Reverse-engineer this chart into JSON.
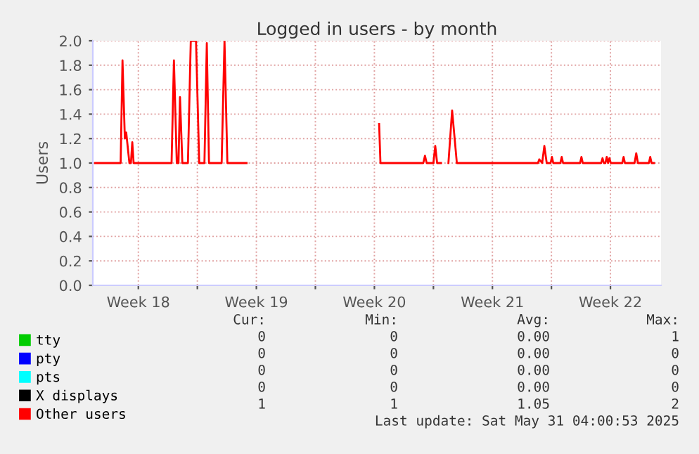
{
  "chart_data": {
    "type": "line",
    "title": "Logged in users - by month",
    "ylabel": "Users",
    "xlim": [
      "2025-04-27T19:12",
      "2025-05-31T12:00"
    ],
    "xticks": [
      {
        "value": "2025-04-30T12:00",
        "label": "Week 18"
      },
      {
        "value": "2025-05-04T00:00",
        "label": null
      },
      {
        "value": "2025-05-07T12:00",
        "label": "Week 19"
      },
      {
        "value": "2025-05-11T00:00",
        "label": null
      },
      {
        "value": "2025-05-14T12:00",
        "label": "Week 20"
      },
      {
        "value": "2025-05-18T00:00",
        "label": null
      },
      {
        "value": "2025-05-21T12:00",
        "label": "Week 21"
      },
      {
        "value": "2025-05-25T00:00",
        "label": null
      },
      {
        "value": "2025-05-28T12:00",
        "label": "Week 22"
      }
    ],
    "ylim": [
      0,
      2.0
    ],
    "yticks": [
      {
        "value": 0,
        "label": "0.0"
      },
      {
        "value": 0.2,
        "label": "0.2"
      },
      {
        "value": 0.4,
        "label": "0.4"
      },
      {
        "value": 0.6,
        "label": "0.6"
      },
      {
        "value": 0.8,
        "label": "0.8"
      },
      {
        "value": 1.0,
        "label": "1.0"
      },
      {
        "value": 1.2,
        "label": "1.2"
      },
      {
        "value": 1.4,
        "label": "1.4"
      },
      {
        "value": 1.6,
        "label": "1.6"
      },
      {
        "value": 1.8,
        "label": "1.8"
      },
      {
        "value": 2.0,
        "label": "2.0"
      }
    ],
    "grid": true,
    "legend": "bottom",
    "marker": "none",
    "line_style": "solid",
    "series": [
      {
        "name": "tty",
        "color": "#00cc00"
      },
      {
        "name": "pty",
        "color": "#0000ff"
      },
      {
        "name": "pts",
        "color": "#00ffff"
      },
      {
        "name": "X displays",
        "color": "#000000"
      },
      {
        "name": "Other users",
        "color": "#ff0000",
        "x": [
          "2025-04-27T22:34",
          "2025-04-29T10:48",
          "2025-04-29T13:26",
          "2025-04-29T16:48",
          "2025-04-29T18:43",
          "2025-04-29T23:17",
          "2025-04-30T01:26",
          "2025-04-30T03:22",
          "2025-04-30T05:17",
          "2025-05-02T11:17",
          "2025-05-02T14:38",
          "2025-05-02T18:43",
          "2025-05-02T21:07",
          "2025-05-02T23:17",
          "2025-05-03T02:38",
          "2025-05-03T10:34",
          "2025-05-03T14:38",
          "2025-05-03T22:05",
          "2025-05-04T02:38",
          "2025-05-04T10:05",
          "2025-05-04T13:26",
          "2025-05-04T16:34",
          "2025-05-05T10:34",
          "2025-05-05T14:38",
          "2025-05-05T18:43",
          "2025-05-06T22:05",
          "2025-05-07T00:00",
          "2025-05-14T18:43",
          "2025-05-14T20:38",
          "2025-05-17T09:36",
          "2025-05-17T12:00",
          "2025-05-17T14:24",
          "2025-05-18T00:00",
          "2025-05-18T02:38",
          "2025-05-18T05:17",
          "2025-05-18T10:48",
          "2025-05-18T13:12",
          "2025-05-18T21:22",
          "2025-05-19T02:38",
          "2025-05-19T09:22",
          "2025-05-24T04:48",
          "2025-05-24T06:43",
          "2025-05-24T10:48",
          "2025-05-24T13:55",
          "2025-05-24T17:17",
          "2025-05-24T22:48",
          "2025-05-25T00:43",
          "2025-05-25T02:38",
          "2025-05-25T12:43",
          "2025-05-25T14:38",
          "2025-05-25T16:34",
          "2025-05-26T16:48",
          "2025-05-26T18:43",
          "2025-05-26T20:38",
          "2025-05-27T22:48",
          "2025-05-28T00:43",
          "2025-05-28T02:38",
          "2025-05-28T04:48",
          "2025-05-28T06:43",
          "2025-05-28T08:38",
          "2025-05-28T10:34",
          "2025-05-28T12:29",
          "2025-05-29T04:48",
          "2025-05-29T06:43",
          "2025-05-29T08:38",
          "2025-05-29T22:19",
          "2025-05-30T00:43",
          "2025-05-30T03:07",
          "2025-05-30T18:43",
          "2025-05-30T20:38",
          "2025-05-30T22:34",
          "2025-05-31T01:55"
        ],
        "values": [
          1,
          1,
          1.84,
          1.2,
          1.25,
          1,
          1,
          1.17,
          1,
          1,
          1.84,
          1,
          1,
          1.54,
          1,
          1,
          2.0,
          2.0,
          1,
          1,
          1.98,
          1,
          1,
          2.0,
          1,
          1,
          null,
          1.32,
          1,
          1,
          1.06,
          1,
          1,
          1.14,
          1,
          1,
          null,
          1,
          1.43,
          1,
          1,
          1.03,
          1,
          1.14,
          1,
          1,
          1.05,
          1,
          1,
          1.05,
          1,
          1,
          1.05,
          1,
          1,
          1.04,
          1,
          1,
          1.05,
          1,
          1.04,
          1,
          1,
          1.05,
          1,
          1,
          1.08,
          1,
          1,
          1.05,
          1,
          1
        ]
      }
    ],
    "annotations": [
      "Cur:",
      "Min:",
      "Avg:",
      "Max:",
      "0",
      "0",
      "0.00",
      "1",
      "0",
      "0",
      "0.00",
      "0",
      "0",
      "0",
      "0.00",
      "0",
      "0",
      "0",
      "0.00",
      "0",
      "1",
      "1",
      "1.05",
      "2",
      "Last update: Sat May 31 04:00:53 2025"
    ]
  }
}
